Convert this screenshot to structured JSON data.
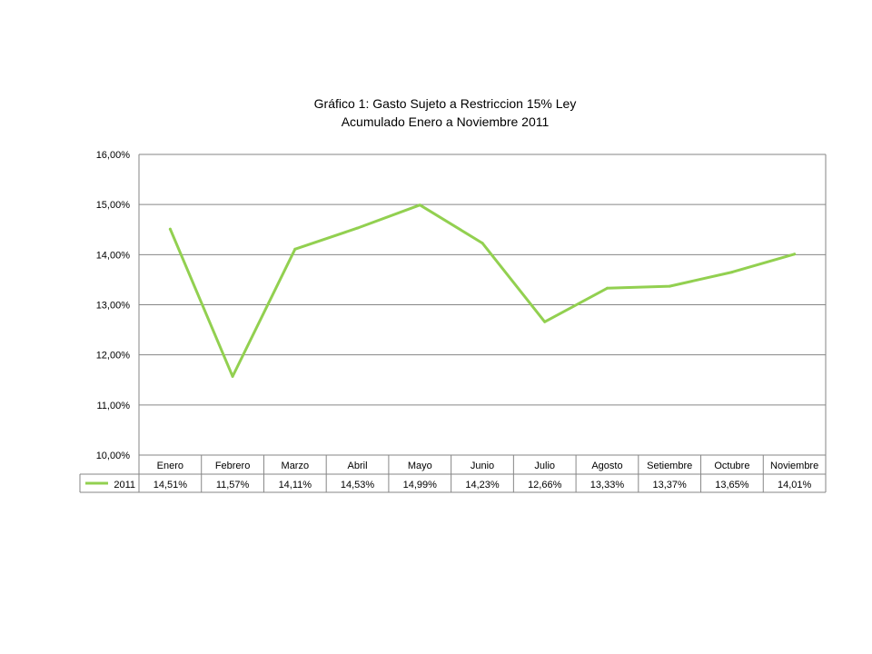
{
  "chart_data": {
    "type": "line",
    "title_line1": "Gráfico 1: Gasto Sujeto a Restriccion 15% Ley",
    "title_line2": "Acumulado Enero a Noviembre 2011",
    "categories": [
      "Enero",
      "Febrero",
      "Marzo",
      "Abril",
      "Mayo",
      "Junio",
      "Julio",
      "Agosto",
      "Setiembre",
      "Octubre",
      "Noviembre"
    ],
    "series": [
      {
        "name": "2011",
        "values": [
          14.51,
          11.57,
          14.11,
          14.53,
          14.99,
          14.23,
          12.66,
          13.33,
          13.37,
          13.65,
          14.01
        ],
        "labels": [
          "14,51%",
          "11,57%",
          "14,11%",
          "14,53%",
          "14,99%",
          "14,23%",
          "12,66%",
          "13,33%",
          "13,37%",
          "13,65%",
          "14,01%"
        ],
        "color": "#92d050"
      }
    ],
    "ylim": [
      10,
      16
    ],
    "yticks": [
      10,
      11,
      12,
      13,
      14,
      15,
      16
    ],
    "ytick_labels": [
      "10,00%",
      "11,00%",
      "12,00%",
      "13,00%",
      "14,00%",
      "15,00%",
      "16,00%"
    ],
    "grid": true,
    "legend": "data-table",
    "data_table": true
  }
}
